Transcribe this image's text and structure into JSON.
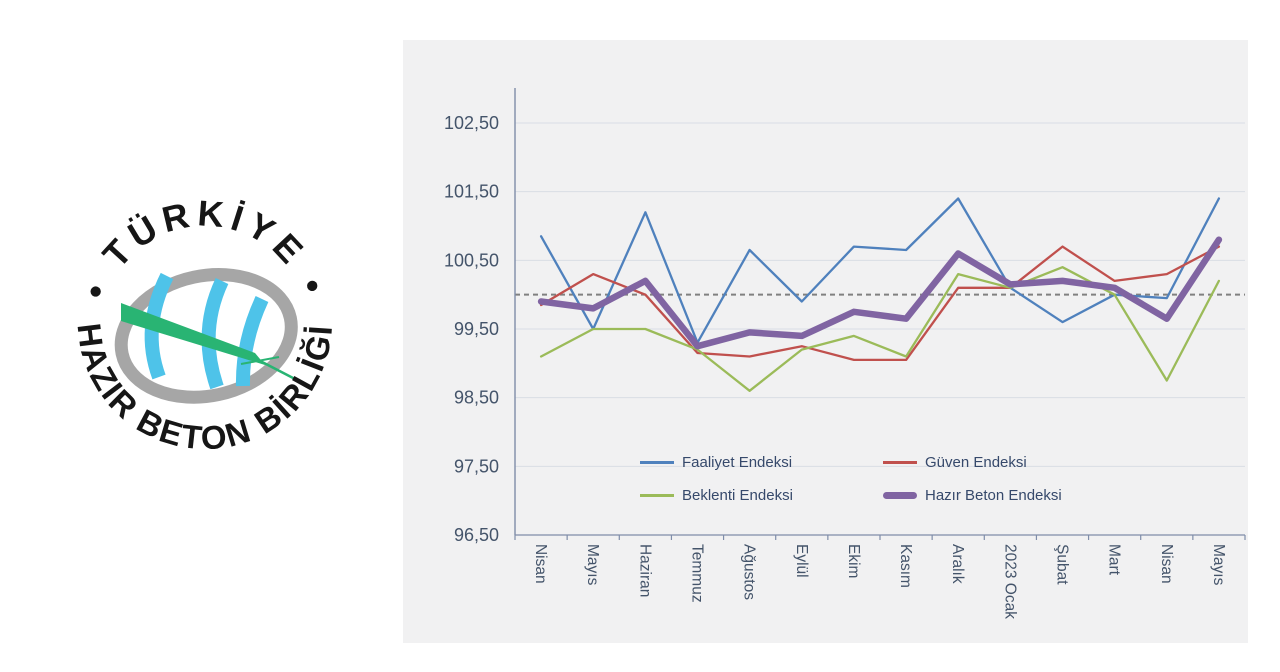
{
  "logo": {
    "top_text": "• TÜRKİYE •",
    "bottom_text": "HAZIR BETON BİRLİĞİ",
    "colors": {
      "text": "#161616",
      "gray": "#A6A6A6",
      "blue": "#4EC3E9",
      "green": "#29B473"
    }
  },
  "panel": {
    "background": "#F1F1F2",
    "grid_color": "#D9DDE5",
    "axis_color": "#7F8DA9",
    "tick_label_color": "#44546A",
    "legend_text_color": "#36496B"
  },
  "chart_data": {
    "type": "line",
    "title": "",
    "xlabel": "",
    "ylabel": "",
    "grid": true,
    "legend_position": "inside-bottom",
    "ylim": [
      96.5,
      103.0
    ],
    "y_ticks": [
      "102,50",
      "101,50",
      "100,50",
      "99,50",
      "98,50",
      "97,50",
      "96,50"
    ],
    "y_tick_values": [
      102.5,
      101.5,
      100.5,
      99.5,
      98.5,
      97.5,
      96.5
    ],
    "categories": [
      "Nisan",
      "Mayıs",
      "Haziran",
      "Temmuz",
      "Ağustos",
      "Eylül",
      "Ekim",
      "Kasım",
      "Aralık",
      "2023 Ocak",
      "Şubat",
      "Mart",
      "Nisan",
      "Mayıs"
    ],
    "reference_line": {
      "value": 100.0,
      "color": "#808080",
      "style": "dashed"
    },
    "series": [
      {
        "name": "Faaliyet Endeksi",
        "color": "#4F81BD",
        "width": 2.3,
        "values": [
          100.85,
          99.5,
          101.2,
          99.3,
          100.65,
          99.9,
          100.7,
          100.65,
          101.4,
          100.1,
          99.6,
          100.0,
          99.95,
          101.4
        ]
      },
      {
        "name": "Güven Endeksi",
        "color": "#C0504D",
        "width": 2.3,
        "values": [
          99.85,
          100.3,
          100.0,
          99.15,
          99.1,
          99.25,
          99.05,
          99.05,
          100.1,
          100.1,
          100.7,
          100.2,
          100.3,
          100.7
        ]
      },
      {
        "name": "Beklenti Endeksi",
        "color": "#9BBB59",
        "width": 2.3,
        "values": [
          99.1,
          99.5,
          99.5,
          99.2,
          98.6,
          99.2,
          99.4,
          99.1,
          100.3,
          100.1,
          100.4,
          100.0,
          98.75,
          100.2
        ]
      },
      {
        "name": "Hazır Beton Endeksi",
        "color": "#8064A2",
        "width": 6.5,
        "values": [
          99.9,
          99.8,
          100.2,
          99.25,
          99.45,
          99.4,
          99.75,
          99.65,
          100.6,
          100.15,
          100.2,
          100.1,
          99.65,
          100.8
        ]
      }
    ]
  }
}
